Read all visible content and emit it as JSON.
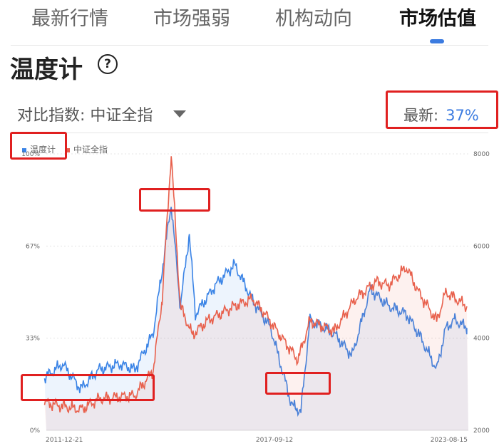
{
  "tabs": [
    {
      "label": "最新行情"
    },
    {
      "label": "市场强弱"
    },
    {
      "label": "机构动向"
    },
    {
      "label": "市场估值",
      "active": true
    }
  ],
  "page_title": "温度计",
  "help_icon": "question-circle-icon",
  "compare": {
    "label": "对比指数:",
    "value": "中证全指"
  },
  "latest": {
    "label": "最新:",
    "value": "37%"
  },
  "colors": {
    "accent": "#3b7be0",
    "temperature": "#3b84e6",
    "index": "#e8604c"
  },
  "chart_data": {
    "type": "line",
    "legend": [
      {
        "name": "温度计",
        "color": "#3b84e6"
      },
      {
        "name": "中证全指",
        "color": "#e8604c"
      }
    ],
    "legend_placement": "top-left",
    "x_ticks": [
      "2011-12-21",
      "2017-09-12",
      "2023-08-15"
    ],
    "y_left": {
      "ticks": [
        "0%",
        "33%",
        "67%",
        "100%"
      ],
      "range": [
        0,
        100
      ]
    },
    "y_right": {
      "ticks": [
        "2000",
        "4000",
        "6000",
        "8000"
      ],
      "range": [
        2000,
        8000
      ]
    },
    "series": [
      {
        "name": "温度计",
        "axis": "left",
        "points": [
          [
            "2011-12",
            19
          ],
          [
            "2012-06",
            24
          ],
          [
            "2012-12",
            15
          ],
          [
            "2013-06",
            22
          ],
          [
            "2014-01",
            24
          ],
          [
            "2014-06",
            22
          ],
          [
            "2014-12",
            35
          ],
          [
            "2015-03",
            58
          ],
          [
            "2015-06",
            82
          ],
          [
            "2015-09",
            45
          ],
          [
            "2015-12",
            71
          ],
          [
            "2016-02",
            42
          ],
          [
            "2016-09",
            53
          ],
          [
            "2017-03",
            60
          ],
          [
            "2017-09",
            47
          ],
          [
            "2018-03",
            37
          ],
          [
            "2018-10",
            9
          ],
          [
            "2019-01",
            7
          ],
          [
            "2019-04",
            40
          ],
          [
            "2019-12",
            35
          ],
          [
            "2020-06",
            27
          ],
          [
            "2020-12",
            51
          ],
          [
            "2021-06",
            45
          ],
          [
            "2021-12",
            42
          ],
          [
            "2022-04",
            35
          ],
          [
            "2022-10",
            22
          ],
          [
            "2023-01",
            37
          ],
          [
            "2023-04",
            40
          ],
          [
            "2023-08",
            37
          ]
        ]
      },
      {
        "name": "中证全指",
        "axis": "right",
        "points": [
          [
            "2011-12",
            2600
          ],
          [
            "2012-12",
            2450
          ],
          [
            "2013-06",
            2680
          ],
          [
            "2014-06",
            2760
          ],
          [
            "2014-12",
            3300
          ],
          [
            "2015-03",
            4850
          ],
          [
            "2015-06",
            8000
          ],
          [
            "2015-09",
            4700
          ],
          [
            "2016-01",
            4070
          ],
          [
            "2016-06",
            4380
          ],
          [
            "2017-03",
            4700
          ],
          [
            "2017-09",
            4850
          ],
          [
            "2018-01",
            4540
          ],
          [
            "2018-06",
            4070
          ],
          [
            "2018-12",
            3530
          ],
          [
            "2019-04",
            4380
          ],
          [
            "2019-12",
            4150
          ],
          [
            "2020-07",
            4850
          ],
          [
            "2021-02",
            5230
          ],
          [
            "2021-06",
            5150
          ],
          [
            "2021-12",
            5540
          ],
          [
            "2022-04",
            5000
          ],
          [
            "2022-10",
            4380
          ],
          [
            "2023-01",
            5000
          ],
          [
            "2023-08",
            4690
          ]
        ]
      }
    ]
  }
}
